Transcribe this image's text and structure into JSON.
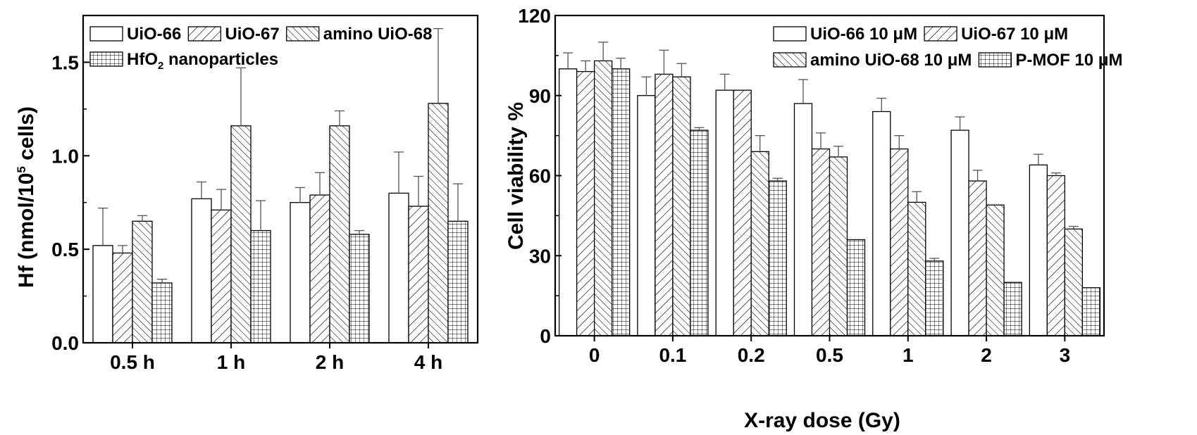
{
  "colors": {
    "ink": "#000000",
    "background": "#ffffff",
    "error_bar": "#555555"
  },
  "chart_data": [
    {
      "type": "bar",
      "title": "",
      "xlabel": "",
      "ylabel_main": "Hf (nmol/10",
      "ylabel_sup": "5",
      "ylabel_tail": " cells)",
      "ylim": [
        0,
        1.75
      ],
      "yticks": [
        "0.0",
        "0.5",
        "1.0",
        "1.5"
      ],
      "ytick_values": [
        0,
        0.5,
        1.0,
        1.5
      ],
      "categories": [
        "0.5 h",
        "1 h",
        "2 h",
        "4 h"
      ],
      "legend_position": "top-left",
      "series": [
        {
          "name": "UiO-66",
          "pattern": "blank",
          "values": [
            0.52,
            0.77,
            0.75,
            0.8
          ],
          "errors": [
            0.2,
            0.09,
            0.08,
            0.22
          ]
        },
        {
          "name": "UiO-67",
          "pattern": "diag-up",
          "values": [
            0.48,
            0.71,
            0.79,
            0.73
          ],
          "errors": [
            0.04,
            0.11,
            0.12,
            0.16
          ]
        },
        {
          "name": "amino UiO-68",
          "pattern": "diag-down",
          "values": [
            0.65,
            1.16,
            1.16,
            1.28
          ],
          "errors": [
            0.03,
            0.31,
            0.08,
            0.4
          ]
        },
        {
          "name_main": "HfO",
          "name_sub": "2",
          "name_tail": " nanoparticles",
          "pattern": "grid",
          "values": [
            0.32,
            0.6,
            0.58,
            0.65
          ],
          "errors": [
            0.02,
            0.16,
            0.02,
            0.2
          ]
        }
      ],
      "legend_rows": [
        [
          0,
          1,
          2
        ],
        [
          3
        ]
      ]
    },
    {
      "type": "bar",
      "title": "",
      "xlabel": "X-ray dose (Gy)",
      "ylabel": "Cell viability %",
      "ylim": [
        0,
        120
      ],
      "yticks": [
        "0",
        "30",
        "60",
        "90",
        "120"
      ],
      "ytick_values": [
        0,
        30,
        60,
        90,
        120
      ],
      "categories": [
        "0",
        "0.1",
        "0.2",
        "0.5",
        "1",
        "2",
        "3"
      ],
      "legend_position": "top-right",
      "series": [
        {
          "name": "UiO-66 10 μM",
          "pattern": "blank",
          "values": [
            100,
            90,
            92,
            87,
            84,
            77,
            64
          ],
          "errors": [
            6,
            7,
            6,
            9,
            5,
            5,
            4
          ]
        },
        {
          "name": "UiO-67 10 μM",
          "pattern": "diag-up",
          "values": [
            99,
            98,
            92,
            70,
            70,
            58,
            60
          ],
          "errors": [
            4,
            9,
            0,
            6,
            5,
            4,
            1
          ]
        },
        {
          "name": "amino UiO-68 10 μM",
          "pattern": "diag-down",
          "values": [
            103,
            97,
            69,
            67,
            50,
            49,
            40
          ],
          "errors": [
            7,
            5,
            6,
            4,
            4,
            0,
            1
          ]
        },
        {
          "name": "P-MOF 10 μM",
          "pattern": "grid",
          "values": [
            100,
            77,
            58,
            36,
            28,
            20,
            18
          ],
          "errors": [
            4,
            1,
            1,
            0,
            1,
            0,
            0
          ]
        }
      ],
      "legend_rows": [
        [
          0,
          1
        ],
        [
          2,
          3
        ]
      ]
    }
  ]
}
